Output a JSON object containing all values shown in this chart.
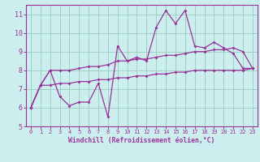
{
  "x": [
    0,
    1,
    2,
    3,
    4,
    5,
    6,
    7,
    8,
    9,
    10,
    11,
    12,
    13,
    14,
    15,
    16,
    17,
    18,
    19,
    20,
    21,
    22,
    23
  ],
  "line_main": [
    6.0,
    7.2,
    8.0,
    6.6,
    6.1,
    6.3,
    6.3,
    7.3,
    5.5,
    9.3,
    8.5,
    8.7,
    8.5,
    10.3,
    11.2,
    10.5,
    11.2,
    9.3,
    9.2,
    9.5,
    9.2,
    8.9,
    8.1,
    8.1
  ],
  "line_upper": [
    6.0,
    7.2,
    8.0,
    8.0,
    8.0,
    8.1,
    8.2,
    8.2,
    8.3,
    8.5,
    8.5,
    8.6,
    8.6,
    8.7,
    8.8,
    8.8,
    8.9,
    9.0,
    9.0,
    9.1,
    9.1,
    9.2,
    9.0,
    8.1
  ],
  "line_lower": [
    6.0,
    7.2,
    7.2,
    7.3,
    7.3,
    7.4,
    7.4,
    7.5,
    7.5,
    7.6,
    7.6,
    7.7,
    7.7,
    7.8,
    7.8,
    7.9,
    7.9,
    8.0,
    8.0,
    8.0,
    8.0,
    8.0,
    8.0,
    8.1
  ],
  "color_line": "#993399",
  "bg_color": "#cceeee",
  "grid_color": "#99ccbb",
  "axis_color": "#993399",
  "xlabel": "Windchill (Refroidissement éolien,°C)",
  "ylim": [
    5,
    11.5
  ],
  "xlim": [
    -0.5,
    23.5
  ],
  "yticks": [
    5,
    6,
    7,
    8,
    9,
    10,
    11
  ],
  "xticks": [
    0,
    1,
    2,
    3,
    4,
    5,
    6,
    7,
    8,
    9,
    10,
    11,
    12,
    13,
    14,
    15,
    16,
    17,
    18,
    19,
    20,
    21,
    22,
    23
  ]
}
